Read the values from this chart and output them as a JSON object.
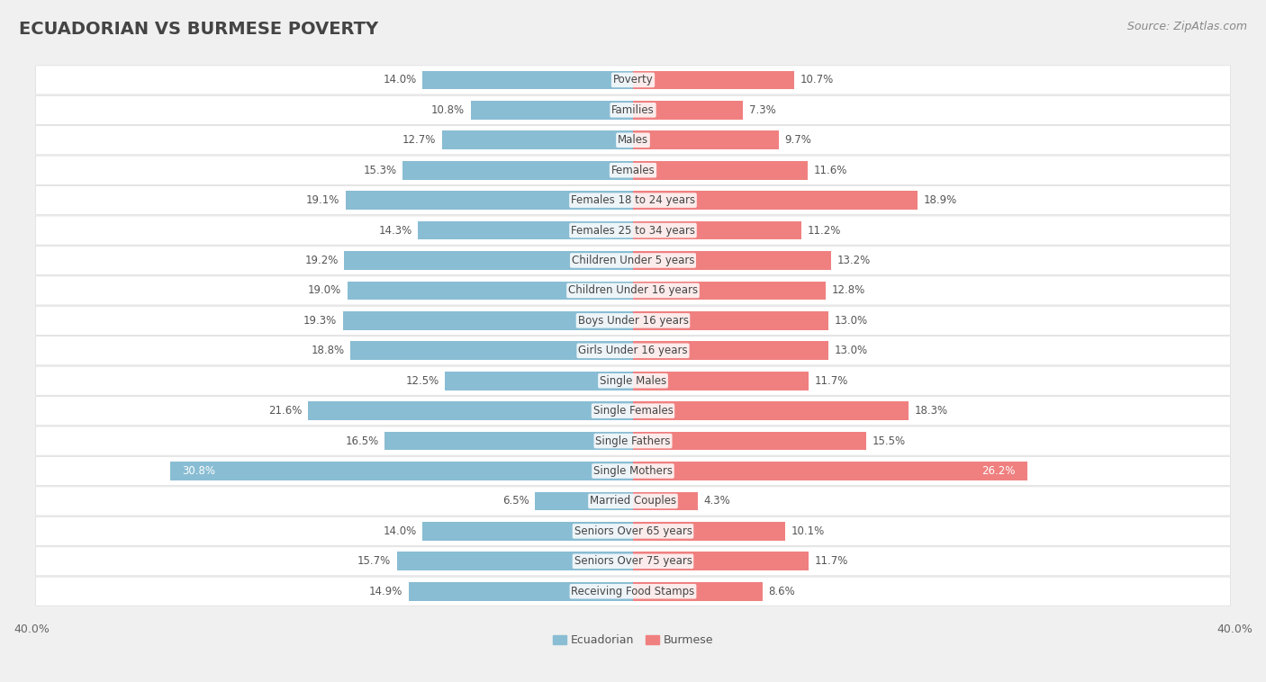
{
  "title": "ECUADORIAN VS BURMESE POVERTY",
  "source": "Source: ZipAtlas.com",
  "categories": [
    "Poverty",
    "Families",
    "Males",
    "Females",
    "Females 18 to 24 years",
    "Females 25 to 34 years",
    "Children Under 5 years",
    "Children Under 16 years",
    "Boys Under 16 years",
    "Girls Under 16 years",
    "Single Males",
    "Single Females",
    "Single Fathers",
    "Single Mothers",
    "Married Couples",
    "Seniors Over 65 years",
    "Seniors Over 75 years",
    "Receiving Food Stamps"
  ],
  "ecuadorian": [
    14.0,
    10.8,
    12.7,
    15.3,
    19.1,
    14.3,
    19.2,
    19.0,
    19.3,
    18.8,
    12.5,
    21.6,
    16.5,
    30.8,
    6.5,
    14.0,
    15.7,
    14.9
  ],
  "burmese": [
    10.7,
    7.3,
    9.7,
    11.6,
    18.9,
    11.2,
    13.2,
    12.8,
    13.0,
    13.0,
    11.7,
    18.3,
    15.5,
    26.2,
    4.3,
    10.1,
    11.7,
    8.6
  ],
  "ecuadorian_color": "#89bdd3",
  "burmese_color": "#f08080",
  "page_bg": "#f0f0f0",
  "card_bg": "#ffffff",
  "card_border": "#dddddd",
  "xlim": 40.0,
  "bar_height": 0.62,
  "title_fontsize": 14,
  "source_fontsize": 9,
  "label_fontsize": 8.5,
  "value_fontsize": 8.5,
  "legend_fontsize": 9,
  "xlabel_fontsize": 9,
  "value_color_dark": "#555555",
  "value_color_white": "#ffffff"
}
